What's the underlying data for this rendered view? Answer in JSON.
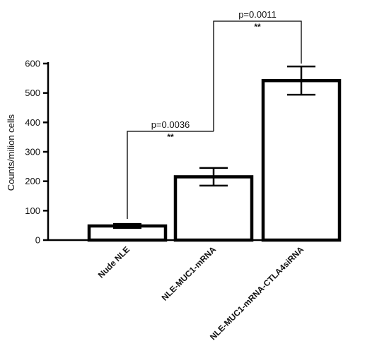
{
  "chart_data": {
    "type": "bar",
    "categories": [
      "Nude NLE",
      "NLE-MUC1-mRNA",
      "NLE-MUC1-mRNA-CTLA4siRNA"
    ],
    "values": [
      48,
      215,
      542
    ],
    "errors": [
      7,
      30,
      48
    ],
    "title": "",
    "xlabel": "",
    "ylabel": "Counts/milion cells",
    "ylim": [
      0,
      600
    ],
    "yticks": [
      0,
      100,
      200,
      300,
      400,
      500,
      600
    ],
    "grid": false,
    "annotations": [
      {
        "from": 0,
        "to": 1,
        "p_text": "p=0.0036",
        "sig": "**"
      },
      {
        "from": 1,
        "to": 2,
        "p_text": "p=0.0011",
        "sig": "**"
      }
    ]
  },
  "colors": {
    "bar_fill": "#ffffff",
    "stroke": "#000000"
  }
}
